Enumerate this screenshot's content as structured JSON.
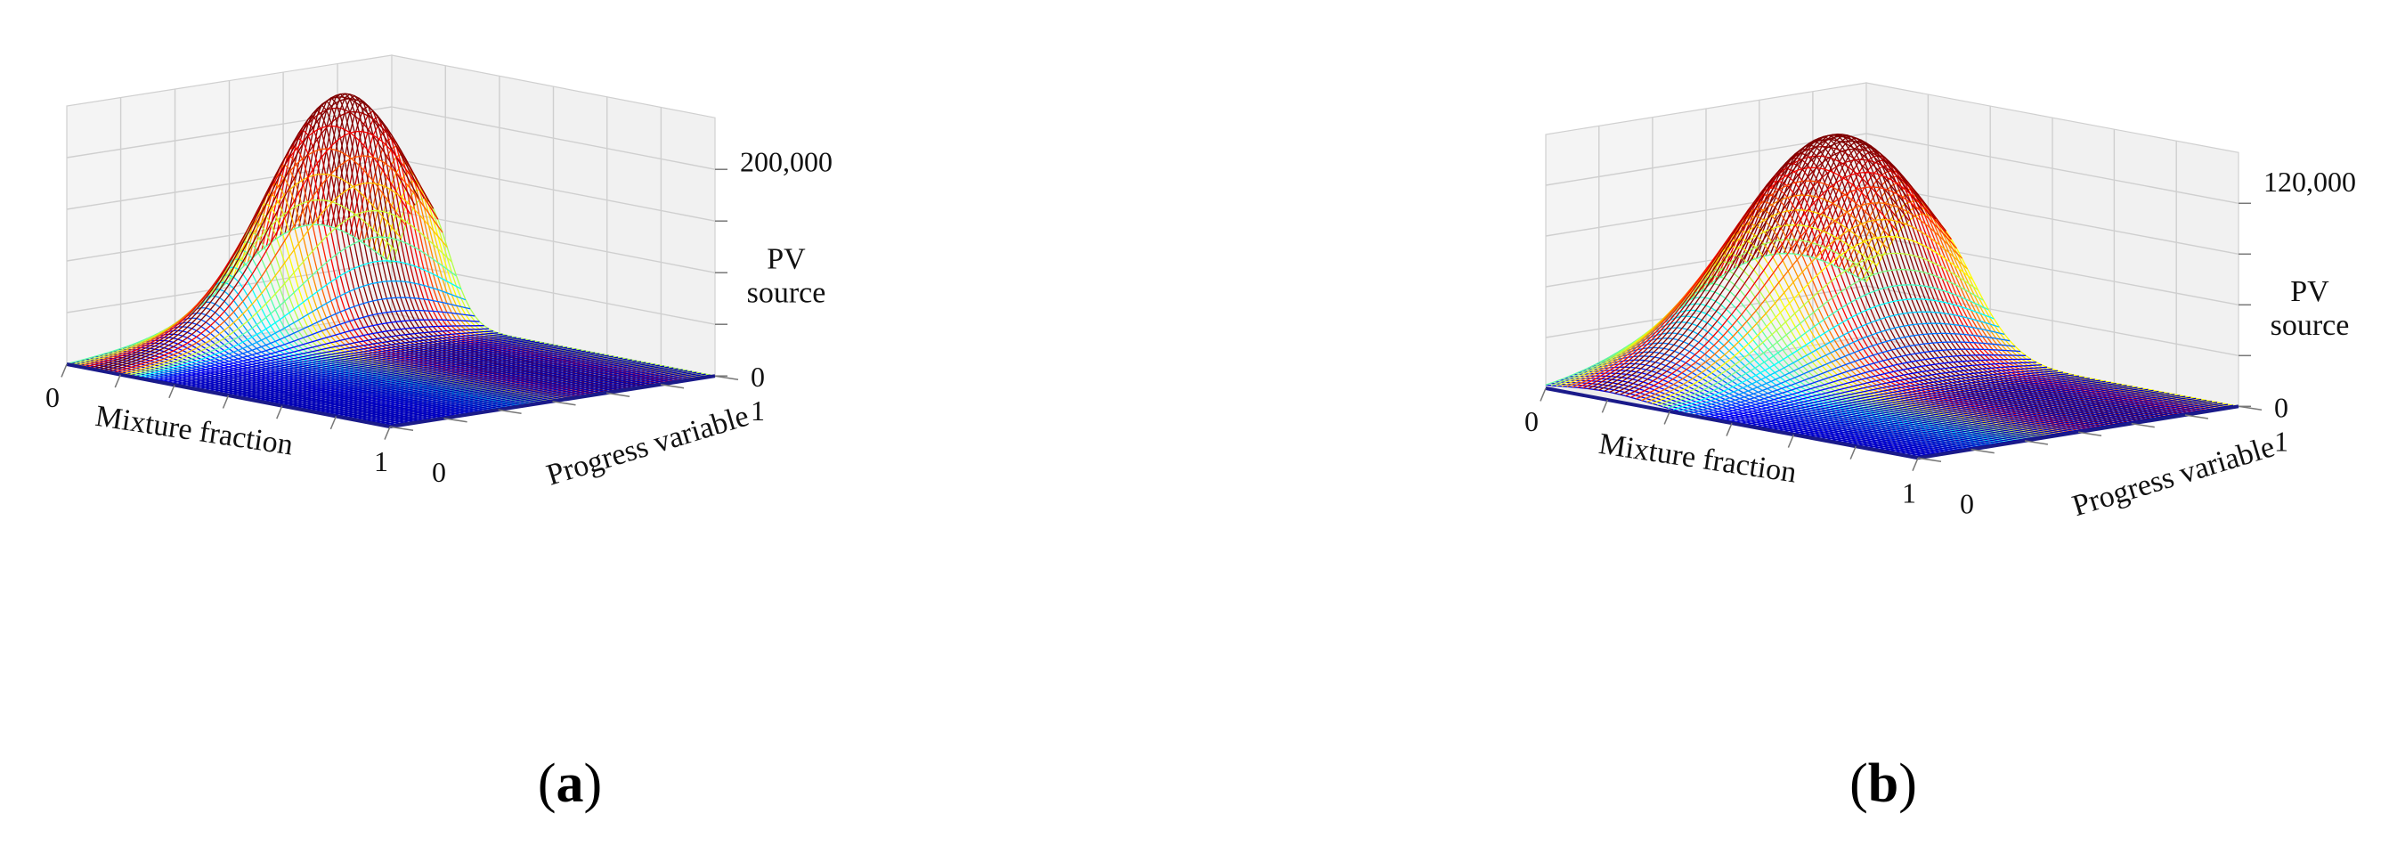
{
  "panels": [
    {
      "caption_letter": "a",
      "chart_data": {
        "type": "surface",
        "xlabel": "Mixture fraction",
        "ylabel": "Progress variable",
        "zlabel_lines": [
          "PV",
          "source"
        ],
        "xlim": [
          0,
          1
        ],
        "ylim": [
          0,
          1
        ],
        "zlim": [
          0,
          240000
        ],
        "x_ticklabels": [
          "0",
          "1"
        ],
        "y_ticklabels": [
          "0",
          "1"
        ],
        "z_ticklabels": [
          "0",
          "200,000"
        ],
        "peak": {
          "mixture_fraction": 0.1,
          "progress_variable": 0.75,
          "value": 215000
        },
        "colormap": "jet"
      }
    },
    {
      "caption_letter": "b",
      "chart_data": {
        "type": "surface",
        "xlabel": "Mixture fraction",
        "ylabel": "Progress variable",
        "zlabel_lines": [
          "PV",
          "source"
        ],
        "xlim": [
          0,
          1
        ],
        "ylim": [
          0,
          1
        ],
        "zlim": [
          0,
          135000
        ],
        "x_ticklabels": [
          "0",
          "1"
        ],
        "y_ticklabels": [
          "0",
          "1"
        ],
        "z_ticklabels": [
          "0",
          "120,000"
        ],
        "peak": {
          "mixture_fraction": 0.16,
          "progress_variable": 0.72,
          "value": 117000
        },
        "colormap": "jet"
      }
    }
  ]
}
